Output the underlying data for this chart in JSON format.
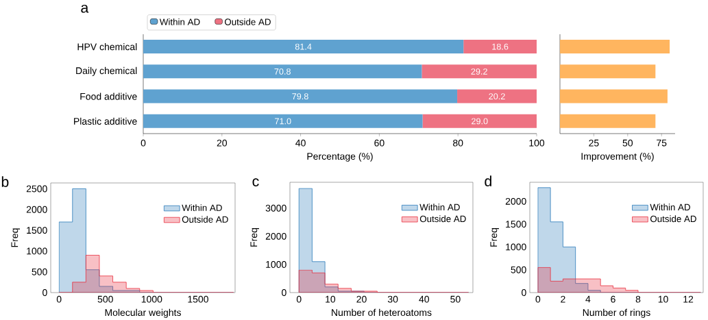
{
  "chart_data": [
    {
      "type": "bar",
      "orientation": "horizontal",
      "stacked": true,
      "title": "a",
      "xlabel": "Percentage (%)",
      "categories": [
        "HPV chemical",
        "Daily chemical",
        "Food additive",
        "Plastic additive"
      ],
      "series": [
        {
          "name": "Within AD",
          "color": "#5fa2d0",
          "values": [
            81.4,
            70.8,
            79.8,
            71.0
          ],
          "value_labels": [
            "81.4",
            "70.8",
            "79.8",
            "71.0"
          ]
        },
        {
          "name": "Outside AD",
          "color": "#ee7282",
          "values": [
            18.6,
            29.2,
            20.2,
            29.0
          ],
          "value_labels": [
            "18.6",
            "29.2",
            "20.2",
            "29.0"
          ]
        }
      ],
      "xlim": [
        0,
        100
      ],
      "xticks": [
        0,
        20,
        40,
        60,
        80,
        100
      ],
      "legend": "top"
    },
    {
      "type": "bar",
      "orientation": "horizontal",
      "xlabel": "Improvement (%)",
      "categories": [
        null,
        null,
        null,
        null
      ],
      "values": [
        81,
        70.5,
        79.4,
        70.5
      ],
      "color": "#ffb55f",
      "xlim": [
        0,
        85
      ],
      "xticks": [
        25,
        50,
        75
      ]
    },
    {
      "type": "histogram",
      "title": "b",
      "xlabel": "Molecular weights",
      "ylabel": "Freq",
      "bins": [
        0,
        145,
        290,
        435,
        580,
        725,
        870,
        1015,
        1160,
        1305,
        1450,
        1595,
        1740,
        1885
      ],
      "series": [
        {
          "name": "Within AD",
          "color": "#2b7bba",
          "values": [
            1700,
            2500,
            550,
            150,
            50,
            50,
            0,
            0,
            0,
            0,
            0,
            0,
            0
          ]
        },
        {
          "name": "Outside AD",
          "color": "#e8303f",
          "values": [
            0,
            250,
            900,
            400,
            250,
            100,
            50,
            0,
            0,
            0,
            0,
            0,
            0
          ]
        }
      ],
      "xlim": [
        -90,
        1900
      ],
      "ylim": [
        0,
        2640
      ],
      "xticks": [
        0,
        500,
        1000,
        1500
      ],
      "yticks": [
        0,
        500,
        1000,
        1500,
        2000,
        2500
      ],
      "legend": "top right"
    },
    {
      "type": "histogram",
      "title": "c",
      "xlabel": "Number of heteroatoms",
      "ylabel": "Freq",
      "bins": [
        0,
        4.2,
        8.3,
        12.5,
        16.7,
        20.8,
        25,
        29.2,
        33.3,
        37.5,
        41.7,
        45.8,
        50,
        54.2
      ],
      "series": [
        {
          "name": "Within AD",
          "color": "#2b7bba",
          "values": [
            3700,
            1100,
            200,
            50,
            50,
            0,
            0,
            0,
            0,
            0,
            0,
            0,
            0
          ]
        },
        {
          "name": "Outside AD",
          "color": "#e8303f",
          "values": [
            800,
            700,
            300,
            150,
            50,
            50,
            0,
            0,
            0,
            0,
            0,
            0,
            0
          ]
        }
      ],
      "xlim": [
        -2.9,
        55.6
      ],
      "ylim": [
        0,
        3920
      ],
      "xticks": [
        0,
        10,
        20,
        30,
        40,
        50
      ],
      "yticks": [
        0,
        1000,
        2000,
        3000
      ],
      "legend": "top right"
    },
    {
      "type": "histogram",
      "title": "d",
      "xlabel": "Number of rings",
      "ylabel": "Freq",
      "bins": [
        0,
        1,
        2,
        3,
        4,
        5,
        6,
        7,
        8,
        9,
        10,
        11,
        12,
        13
      ],
      "series": [
        {
          "name": "Within AD",
          "color": "#2b7bba",
          "values": [
            2300,
            1550,
            1000,
            200,
            50,
            0,
            0,
            0,
            0,
            0,
            0,
            0,
            0
          ]
        },
        {
          "name": "Outside AD",
          "color": "#e8303f",
          "values": [
            550,
            250,
            300,
            300,
            300,
            150,
            100,
            50,
            0,
            0,
            0,
            0,
            0
          ]
        }
      ],
      "xlim": [
        -0.65,
        13.2
      ],
      "ylim": [
        0,
        2418
      ],
      "xticks": [
        0,
        2,
        4,
        6,
        8,
        10,
        12
      ],
      "yticks": [
        0,
        500,
        1000,
        1500,
        2000
      ],
      "legend": "top right"
    }
  ]
}
